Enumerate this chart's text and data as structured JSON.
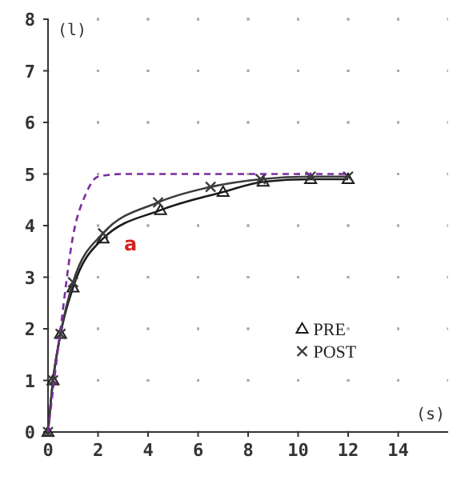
{
  "chart_data": {
    "type": "line",
    "xlabel": "(s)",
    "ylabel": "(l)",
    "xlim": [
      0,
      16
    ],
    "ylim": [
      0,
      8
    ],
    "xticks": [
      0,
      2,
      4,
      6,
      8,
      10,
      12,
      14
    ],
    "yticks": [
      0,
      1,
      2,
      3,
      4,
      5,
      6,
      7,
      8
    ],
    "grid": true,
    "legend": "bottom right",
    "series": [
      {
        "name": "PRE",
        "color": "#1a1a1a",
        "marker": "triangle",
        "line_style": "solid",
        "x": [
          0,
          0.2,
          0.5,
          1,
          2.2,
          4.5,
          7,
          8.6,
          10.5,
          12
        ],
        "values": [
          0,
          1,
          1.9,
          2.8,
          3.75,
          4.3,
          4.65,
          4.85,
          4.9,
          4.9
        ]
      },
      {
        "name": "POST",
        "color": "#3c3c3c",
        "marker": "cross",
        "line_style": "solid",
        "x": [
          0,
          0.2,
          0.5,
          1,
          2.2,
          4.4,
          6.5,
          8.5,
          10.5,
          12
        ],
        "values": [
          0,
          1,
          1.9,
          2.9,
          3.85,
          4.45,
          4.75,
          4.9,
          4.95,
          4.95
        ]
      },
      {
        "color": "#7b2d9e",
        "marker": "none",
        "line_style": "dashed",
        "x": [
          0,
          0.5,
          1,
          1.5,
          2,
          3,
          12
        ],
        "values": [
          0,
          2,
          3.8,
          4.6,
          4.95,
          5,
          5
        ]
      }
    ],
    "annotations": [
      "a"
    ]
  }
}
